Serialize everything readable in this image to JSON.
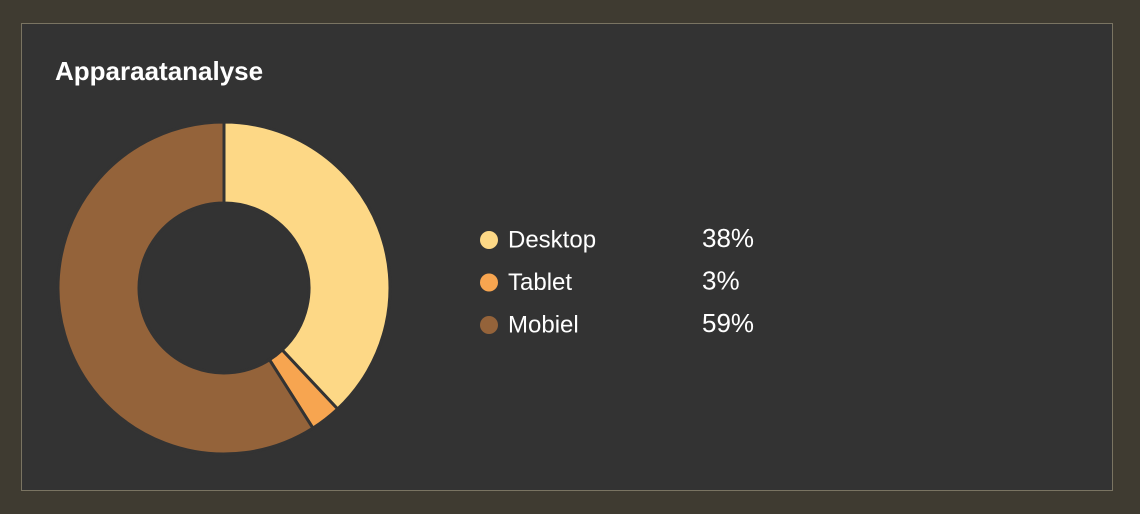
{
  "chart_data": {
    "type": "pie",
    "donut": true,
    "title": "Apparaatanalyse",
    "categories": [
      "Desktop",
      "Tablet",
      "Mobiel"
    ],
    "values": [
      38,
      3,
      59
    ],
    "value_labels": [
      "38%",
      "3%",
      "59%"
    ],
    "colors": [
      "#fdd886",
      "#f7a550",
      "#94633a"
    ]
  }
}
